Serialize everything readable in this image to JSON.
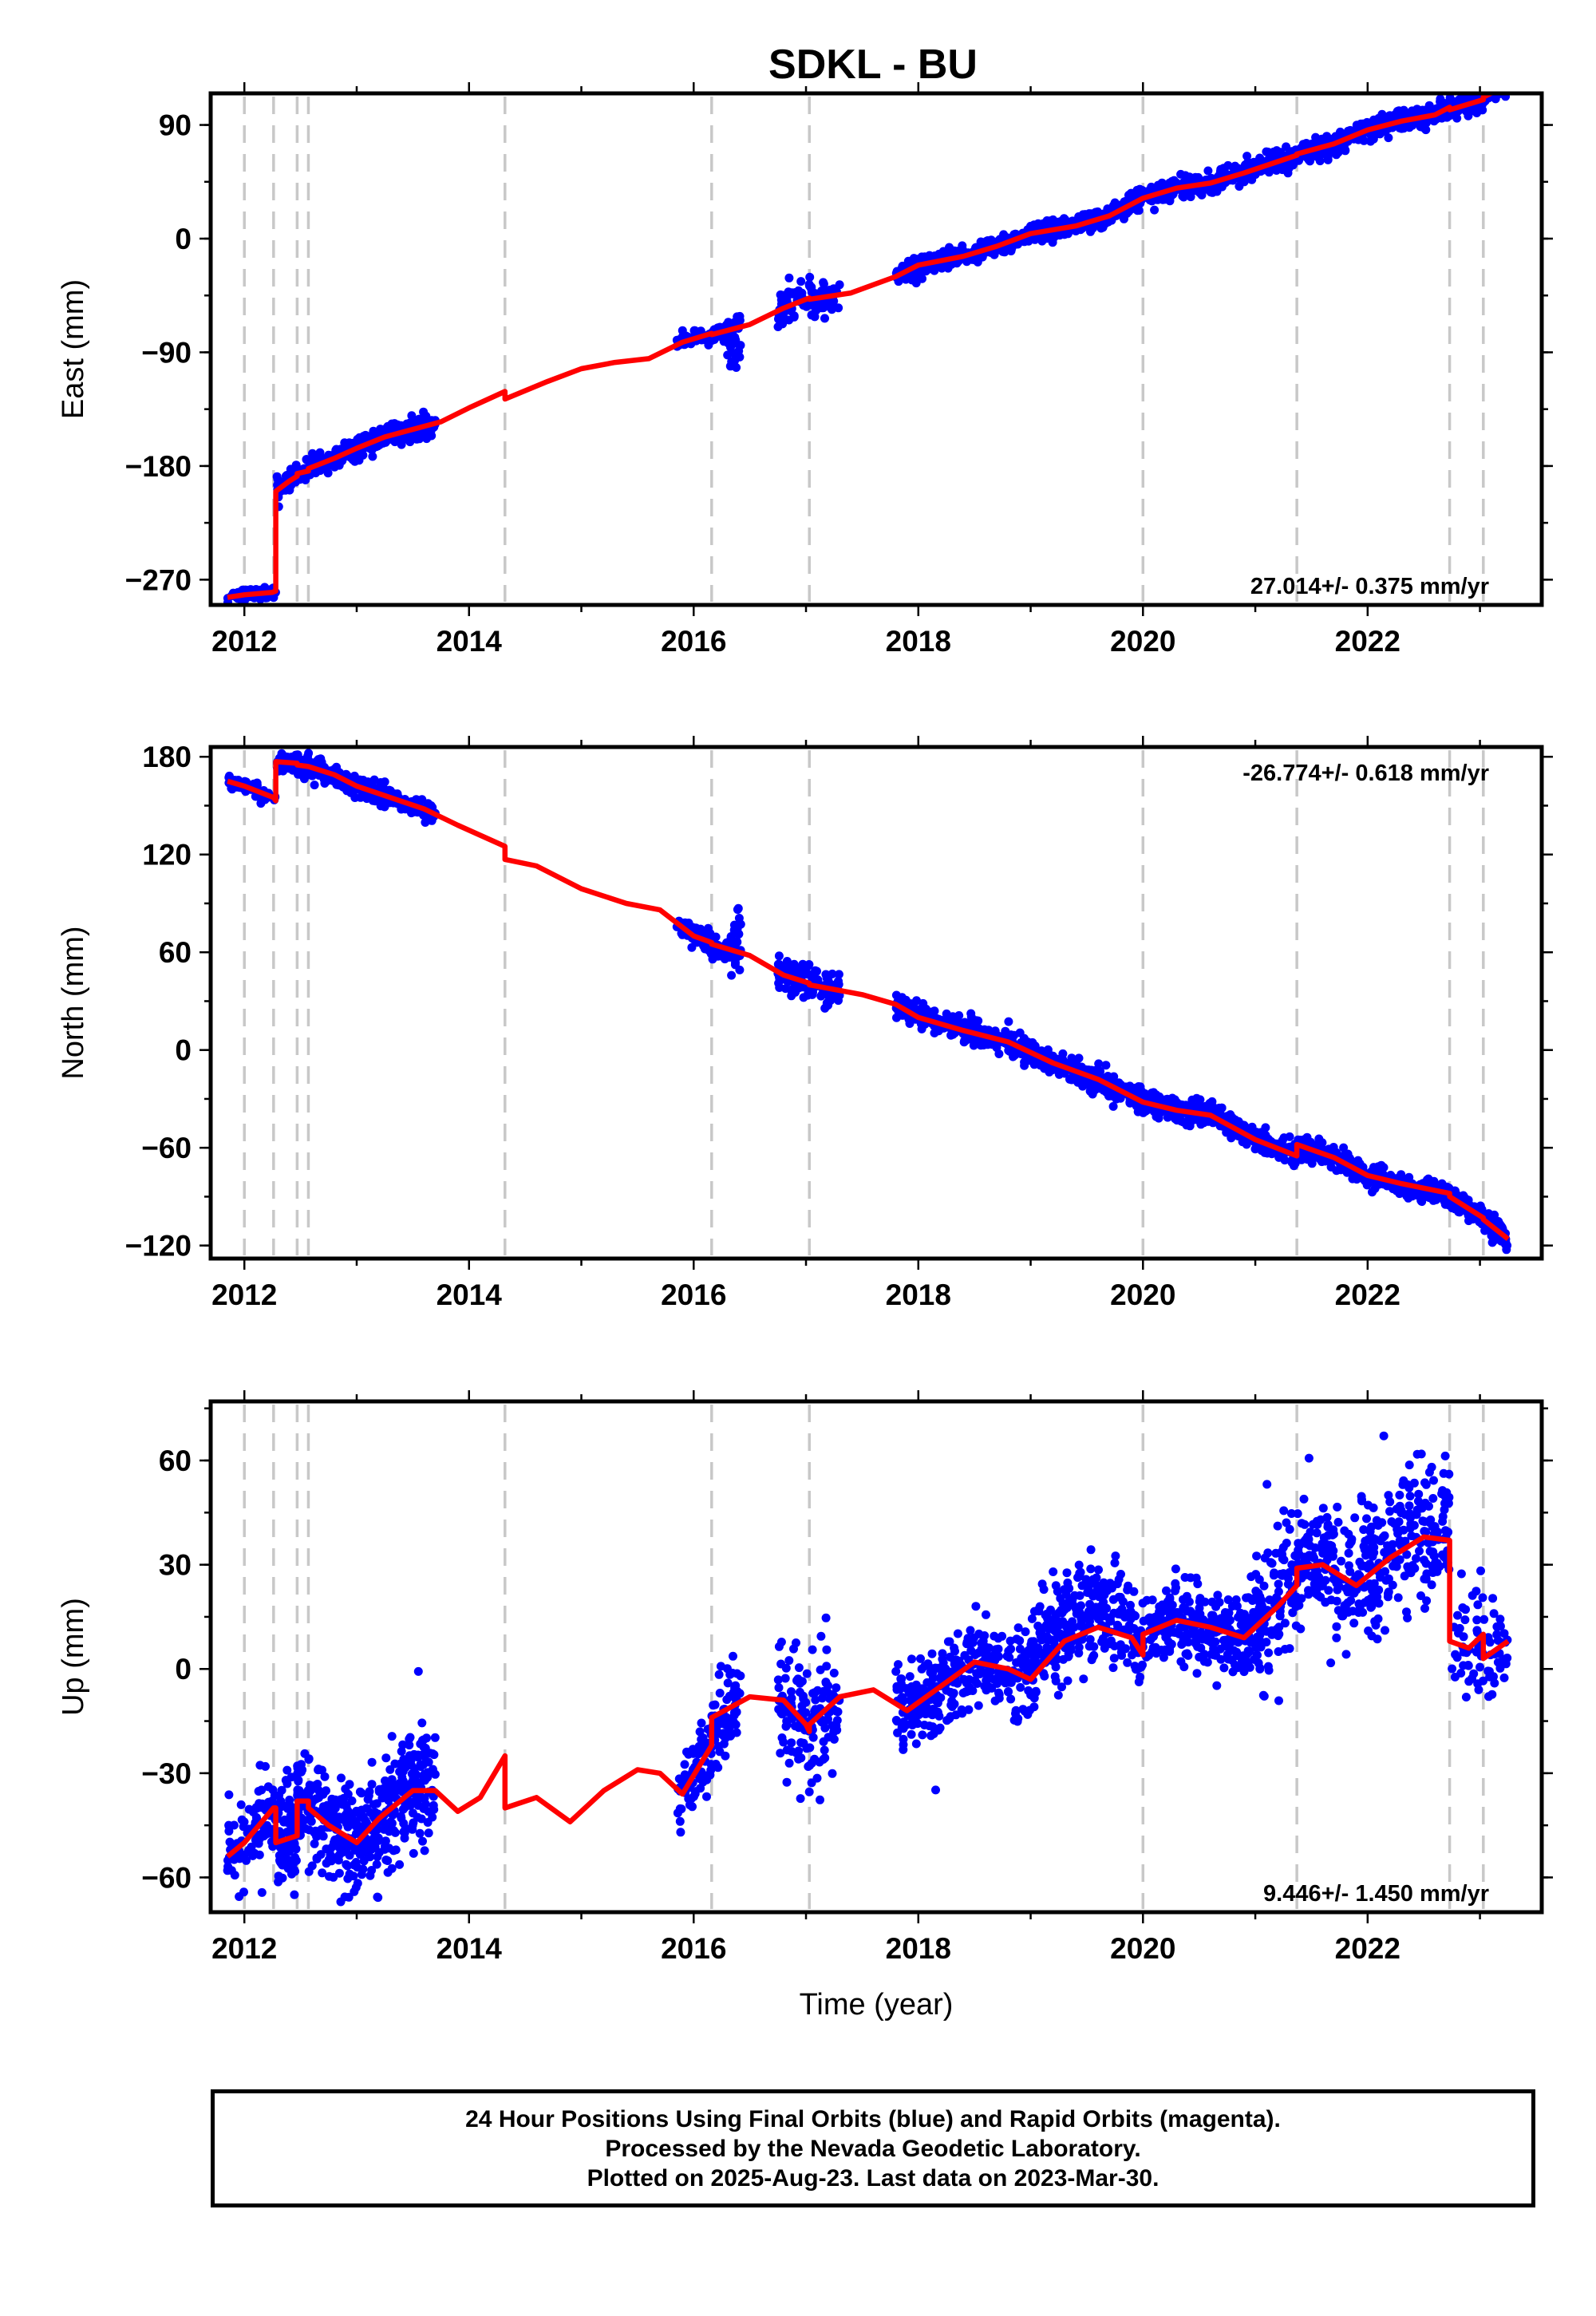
{
  "title": "SDKL - BU",
  "footer": {
    "line1": "24 Hour Positions Using Final Orbits (blue) and Rapid Orbits (magenta).",
    "line2": "Processed by the Nevada Geodetic Laboratory.",
    "line3": "Plotted on 2025-Aug-23. Last data on 2023-Mar-30."
  },
  "colors": {
    "observations": "#0000ff",
    "model_fit": "#ff0000",
    "event_lines": "#c8c8c8"
  },
  "chart_data": [
    {
      "type": "scatter",
      "name": "east",
      "ylabel": "East (mm)",
      "xlabel": "",
      "xlim": [
        2011.7,
        2023.55
      ],
      "ylim": [
        -290,
        115
      ],
      "xticks": [
        2012,
        2014,
        2016,
        2018,
        2020,
        2022
      ],
      "yticks": [
        -270,
        -180,
        -90,
        0,
        90
      ],
      "ytick_labels": [
        "−270",
        "−180",
        "−90",
        "0",
        "90"
      ],
      "rate_label": "27.014+/- 0.375 mm/yr",
      "rate_position": "bottom-right",
      "event_lines": [
        2012.0,
        2012.26,
        2012.47,
        2012.57,
        2014.32,
        2016.16,
        2017.03,
        2020.0,
        2021.37,
        2022.73,
        2023.03
      ],
      "fit": [
        [
          2011.85,
          -284
        ],
        [
          2012.0,
          -282
        ],
        [
          2012.25,
          -280
        ],
        [
          2012.28,
          -279
        ],
        [
          2012.28,
          -200
        ],
        [
          2012.4,
          -192
        ],
        [
          2012.47,
          -188
        ],
        [
          2012.47,
          -186
        ],
        [
          2012.57,
          -184
        ],
        [
          2012.57,
          -182
        ],
        [
          2012.8,
          -174
        ],
        [
          2013.0,
          -166
        ],
        [
          2013.25,
          -157
        ],
        [
          2013.5,
          -151
        ],
        [
          2013.75,
          -145
        ],
        [
          2014.0,
          -134
        ],
        [
          2014.32,
          -121
        ],
        [
          2014.32,
          -127
        ],
        [
          2014.7,
          -113
        ],
        [
          2015.0,
          -103
        ],
        [
          2015.3,
          -98
        ],
        [
          2015.6,
          -95
        ],
        [
          2015.9,
          -82
        ],
        [
          2016.16,
          -75
        ],
        [
          2016.16,
          -76
        ],
        [
          2016.5,
          -68
        ],
        [
          2016.8,
          -55
        ],
        [
          2017.03,
          -47
        ],
        [
          2017.03,
          -48
        ],
        [
          2017.4,
          -43
        ],
        [
          2017.8,
          -30
        ],
        [
          2018.0,
          -21
        ],
        [
          2018.4,
          -14
        ],
        [
          2018.7,
          -6
        ],
        [
          2019.0,
          4
        ],
        [
          2019.4,
          10
        ],
        [
          2019.7,
          18
        ],
        [
          2020.0,
          32
        ],
        [
          2020.3,
          40
        ],
        [
          2020.6,
          44
        ],
        [
          2020.9,
          52
        ],
        [
          2021.2,
          61
        ],
        [
          2021.37,
          66
        ],
        [
          2021.37,
          67
        ],
        [
          2021.7,
          75
        ],
        [
          2022.0,
          86
        ],
        [
          2022.3,
          93
        ],
        [
          2022.6,
          98
        ],
        [
          2022.73,
          104
        ],
        [
          2022.73,
          102
        ],
        [
          2023.03,
          110
        ],
        [
          2023.03,
          112
        ],
        [
          2023.25,
          122
        ]
      ],
      "obs_segments": [
        {
          "x": [
            2011.85,
            2012.28
          ],
          "fit_interp": true,
          "sd": 2.5,
          "n": 70
        },
        {
          "x": [
            2012.29,
            2013.7
          ],
          "fit_interp": true,
          "sd": 4,
          "n": 400
        },
        {
          "x": [
            2015.85,
            2016.33
          ],
          "fit_interp": true,
          "sd": 3,
          "n": 100
        },
        {
          "x": [
            2016.3,
            2016.42
          ],
          "fit_interp": true,
          "sd": 10,
          "n": 30,
          "offset": -18
        },
        {
          "x": [
            2016.75,
            2017.3
          ],
          "fit_interp": true,
          "sd": 7,
          "n": 120
        },
        {
          "x": [
            2017.8,
            2023.25
          ],
          "fit_interp": true,
          "sd": 4,
          "n": 1400
        }
      ]
    },
    {
      "type": "scatter",
      "name": "north",
      "ylabel": "North (mm)",
      "xlabel": "",
      "xlim": [
        2011.7,
        2023.55
      ],
      "ylim": [
        -128,
        186
      ],
      "xticks": [
        2012,
        2014,
        2016,
        2018,
        2020,
        2022
      ],
      "yticks": [
        -120,
        -60,
        0,
        60,
        120,
        180
      ],
      "ytick_labels": [
        "−120",
        "−60",
        "0",
        "60",
        "120",
        "180"
      ],
      "rate_label": "-26.774+/- 0.618 mm/yr",
      "rate_position": "top-right",
      "event_lines": [
        2012.0,
        2012.26,
        2012.47,
        2012.57,
        2014.32,
        2016.16,
        2017.03,
        2020.0,
        2021.37,
        2022.73,
        2023.03
      ],
      "fit": [
        [
          2011.85,
          165
        ],
        [
          2012.0,
          162
        ],
        [
          2012.26,
          155
        ],
        [
          2012.28,
          153
        ],
        [
          2012.28,
          177
        ],
        [
          2012.47,
          176
        ],
        [
          2012.47,
          175
        ],
        [
          2012.57,
          174
        ],
        [
          2012.57,
          174
        ],
        [
          2012.8,
          169
        ],
        [
          2013.0,
          162
        ],
        [
          2013.3,
          155
        ],
        [
          2013.6,
          148
        ],
        [
          2013.9,
          138
        ],
        [
          2014.32,
          125
        ],
        [
          2014.32,
          117
        ],
        [
          2014.6,
          113
        ],
        [
          2015.0,
          99
        ],
        [
          2015.4,
          90
        ],
        [
          2015.7,
          86
        ],
        [
          2016.0,
          70
        ],
        [
          2016.16,
          66
        ],
        [
          2016.16,
          65
        ],
        [
          2016.5,
          58
        ],
        [
          2016.8,
          46
        ],
        [
          2017.03,
          41
        ],
        [
          2017.03,
          40
        ],
        [
          2017.5,
          34
        ],
        [
          2017.8,
          28
        ],
        [
          2018.0,
          20
        ],
        [
          2018.4,
          12
        ],
        [
          2018.8,
          5
        ],
        [
          2019.2,
          -8
        ],
        [
          2019.6,
          -18
        ],
        [
          2020.0,
          -32
        ],
        [
          2020.3,
          -37
        ],
        [
          2020.6,
          -40
        ],
        [
          2021.0,
          -55
        ],
        [
          2021.37,
          -65
        ],
        [
          2021.37,
          -58
        ],
        [
          2021.7,
          -66
        ],
        [
          2022.0,
          -77
        ],
        [
          2022.3,
          -82
        ],
        [
          2022.73,
          -88
        ],
        [
          2022.73,
          -90
        ],
        [
          2023.03,
          -103
        ],
        [
          2023.03,
          -104
        ],
        [
          2023.25,
          -116
        ]
      ],
      "obs_segments": [
        {
          "x": [
            2011.85,
            2012.28
          ],
          "fit_interp": true,
          "sd": 2,
          "n": 70
        },
        {
          "x": [
            2012.29,
            2013.7
          ],
          "fit_interp": true,
          "sd": 3,
          "n": 400
        },
        {
          "x": [
            2015.85,
            2016.33
          ],
          "fit_interp": true,
          "sd": 3,
          "n": 100
        },
        {
          "x": [
            2016.33,
            2016.42
          ],
          "fit_interp": true,
          "sd": 12,
          "n": 25,
          "offset": 10
        },
        {
          "x": [
            2016.75,
            2017.3
          ],
          "fit_interp": true,
          "sd": 5,
          "n": 120
        },
        {
          "x": [
            2017.8,
            2023.25
          ],
          "fit_interp": true,
          "sd": 3.5,
          "n": 1400
        }
      ]
    },
    {
      "type": "scatter",
      "name": "up",
      "ylabel": "Up (mm)",
      "xlabel": "Time (year)",
      "xlim": [
        2011.7,
        2023.55
      ],
      "ylim": [
        -70,
        77
      ],
      "xticks": [
        2012,
        2014,
        2016,
        2018,
        2020,
        2022
      ],
      "yticks": [
        -60,
        -30,
        0,
        30,
        60
      ],
      "ytick_labels": [
        "−60",
        "−30",
        "0",
        "30",
        "60"
      ],
      "rate_label": "9.446+/- 1.450 mm/yr",
      "rate_position": "bottom-right",
      "event_lines": [
        2012.0,
        2012.26,
        2012.47,
        2012.57,
        2014.32,
        2016.16,
        2017.03,
        2020.0,
        2021.37,
        2022.73,
        2023.03
      ],
      "fit": [
        [
          2011.85,
          -54
        ],
        [
          2012.0,
          -50
        ],
        [
          2012.26,
          -40
        ],
        [
          2012.28,
          -40
        ],
        [
          2012.28,
          -50
        ],
        [
          2012.47,
          -48
        ],
        [
          2012.47,
          -38
        ],
        [
          2012.57,
          -38
        ],
        [
          2012.57,
          -40
        ],
        [
          2012.75,
          -45
        ],
        [
          2013.0,
          -50
        ],
        [
          2013.2,
          -43
        ],
        [
          2013.5,
          -35
        ],
        [
          2013.7,
          -35
        ],
        [
          2013.9,
          -41
        ],
        [
          2014.1,
          -37
        ],
        [
          2014.32,
          -25
        ],
        [
          2014.32,
          -40
        ],
        [
          2014.6,
          -37
        ],
        [
          2014.9,
          -44
        ],
        [
          2015.2,
          -35
        ],
        [
          2015.5,
          -29
        ],
        [
          2015.7,
          -30
        ],
        [
          2015.9,
          -36
        ],
        [
          2016.16,
          -22
        ],
        [
          2016.16,
          -14
        ],
        [
          2016.5,
          -8
        ],
        [
          2016.8,
          -9
        ],
        [
          2017.0,
          -16
        ],
        [
          2017.03,
          -18
        ],
        [
          2017.03,
          -16
        ],
        [
          2017.3,
          -8
        ],
        [
          2017.6,
          -6
        ],
        [
          2017.9,
          -12
        ],
        [
          2018.2,
          -5
        ],
        [
          2018.5,
          2
        ],
        [
          2018.8,
          0
        ],
        [
          2019.0,
          -3
        ],
        [
          2019.3,
          8
        ],
        [
          2019.6,
          12
        ],
        [
          2019.9,
          9
        ],
        [
          2020.0,
          4
        ],
        [
          2020.0,
          10
        ],
        [
          2020.3,
          14
        ],
        [
          2020.6,
          12
        ],
        [
          2020.9,
          9
        ],
        [
          2021.2,
          18
        ],
        [
          2021.37,
          24
        ],
        [
          2021.37,
          29
        ],
        [
          2021.6,
          30
        ],
        [
          2021.9,
          24
        ],
        [
          2022.2,
          32
        ],
        [
          2022.5,
          38
        ],
        [
          2022.73,
          37
        ],
        [
          2022.73,
          8
        ],
        [
          2022.9,
          6
        ],
        [
          2023.03,
          10
        ],
        [
          2023.03,
          3
        ],
        [
          2023.25,
          8
        ]
      ],
      "obs_segments": [
        {
          "x": [
            2011.85,
            2012.28
          ],
          "fit_interp": true,
          "sd": 7,
          "n": 90
        },
        {
          "x": [
            2012.29,
            2013.7
          ],
          "fit_interp": true,
          "sd": 8,
          "n": 500
        },
        {
          "x": [
            2015.85,
            2016.42
          ],
          "fit_interp": true,
          "sd": 6,
          "n": 140
        },
        {
          "x": [
            2016.75,
            2017.3
          ],
          "fit_interp": true,
          "sd": 9,
          "n": 140
        },
        {
          "x": [
            2017.8,
            2019.0
          ],
          "fit_interp": true,
          "sd": 6,
          "n": 320
        },
        {
          "x": [
            2019.0,
            2019.9
          ],
          "fit_interp": true,
          "sd": 7,
          "n": 260,
          "offset": 10
        },
        {
          "x": [
            2019.9,
            2021.0
          ],
          "fit_interp": true,
          "sd": 6,
          "n": 300
        },
        {
          "x": [
            2021.0,
            2022.73
          ],
          "fit_interp": true,
          "sd": 10,
          "n": 480,
          "offset": 4
        },
        {
          "x": [
            2022.73,
            2023.25
          ],
          "fit_interp": true,
          "sd": 8,
          "n": 80
        }
      ]
    }
  ]
}
